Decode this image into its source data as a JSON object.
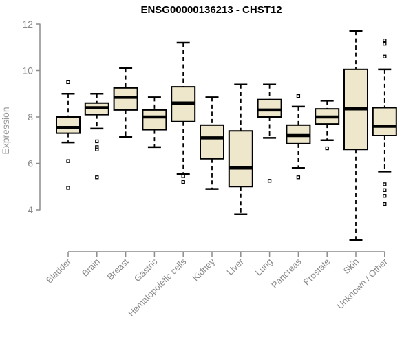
{
  "chart_data": {
    "type": "boxplot",
    "title": "ENSG00000136213 - CHST12",
    "xlabel": "",
    "ylabel": "Expression",
    "y_ticks": [
      4,
      6,
      8,
      10,
      12
    ],
    "ylim": [
      2.2,
      12.2
    ],
    "grid": false,
    "legend": false,
    "categories": [
      "Bladder",
      "Brain",
      "Breast",
      "Gastric",
      "Hematopoietic cells",
      "Kidney",
      "Liver",
      "Lung",
      "Pancreas",
      "Prostate",
      "Skin",
      "Unknown / Other"
    ],
    "series": [
      {
        "name": "Bladder",
        "whislo": 6.9,
        "q1": 7.3,
        "med": 7.55,
        "q3": 8.0,
        "whishi": 9.0,
        "outliers": [
          9.5,
          6.1,
          4.95
        ]
      },
      {
        "name": "Brain",
        "whislo": 7.5,
        "q1": 8.1,
        "med": 8.4,
        "q3": 8.6,
        "whishi": 9.0,
        "outliers": [
          6.95,
          6.7,
          6.6,
          5.4
        ]
      },
      {
        "name": "Breast",
        "whislo": 7.15,
        "q1": 8.3,
        "med": 8.85,
        "q3": 9.25,
        "whishi": 10.1,
        "outliers": []
      },
      {
        "name": "Gastric",
        "whislo": 6.7,
        "q1": 7.45,
        "med": 8.0,
        "q3": 8.3,
        "whishi": 8.85,
        "outliers": []
      },
      {
        "name": "Hematopoietic cells",
        "whislo": 5.55,
        "q1": 7.8,
        "med": 8.6,
        "q3": 9.3,
        "whishi": 11.2,
        "outliers": [
          5.45,
          5.2
        ]
      },
      {
        "name": "Kidney",
        "whislo": 4.9,
        "q1": 6.2,
        "med": 7.1,
        "q3": 7.65,
        "whishi": 8.85,
        "outliers": []
      },
      {
        "name": "Liver",
        "whislo": 3.8,
        "q1": 5.0,
        "med": 5.8,
        "q3": 7.4,
        "whishi": 9.4,
        "outliers": []
      },
      {
        "name": "Lung",
        "whislo": 7.1,
        "q1": 8.0,
        "med": 8.3,
        "q3": 8.75,
        "whishi": 9.4,
        "outliers": [
          5.25
        ]
      },
      {
        "name": "Pancreas",
        "whislo": 5.8,
        "q1": 6.85,
        "med": 7.2,
        "q3": 7.65,
        "whishi": 8.45,
        "outliers": [
          8.9,
          5.4
        ]
      },
      {
        "name": "Prostate",
        "whislo": 7.0,
        "q1": 7.7,
        "med": 8.0,
        "q3": 8.35,
        "whishi": 8.7,
        "outliers": [
          6.65
        ]
      },
      {
        "name": "Skin",
        "whislo": 2.7,
        "q1": 6.6,
        "med": 8.35,
        "q3": 10.05,
        "whishi": 11.7,
        "outliers": []
      },
      {
        "name": "Unknown / Other",
        "whislo": 5.65,
        "q1": 7.2,
        "med": 7.6,
        "q3": 8.4,
        "whishi": 10.05,
        "outliers": [
          11.3,
          11.15,
          10.6,
          5.1,
          4.85,
          4.6,
          4.25
        ]
      }
    ],
    "colors": {
      "box_fill": "#EEE7CC",
      "box_border": "#000000",
      "median": "#000000",
      "whisker": "#000000",
      "outlier": "#000000",
      "axis": "#8C8C8C",
      "tick_label": "#8A8A8A",
      "axis_title": "#9C9C9C",
      "title": "#000000",
      "background": "#FFFFFF"
    }
  }
}
